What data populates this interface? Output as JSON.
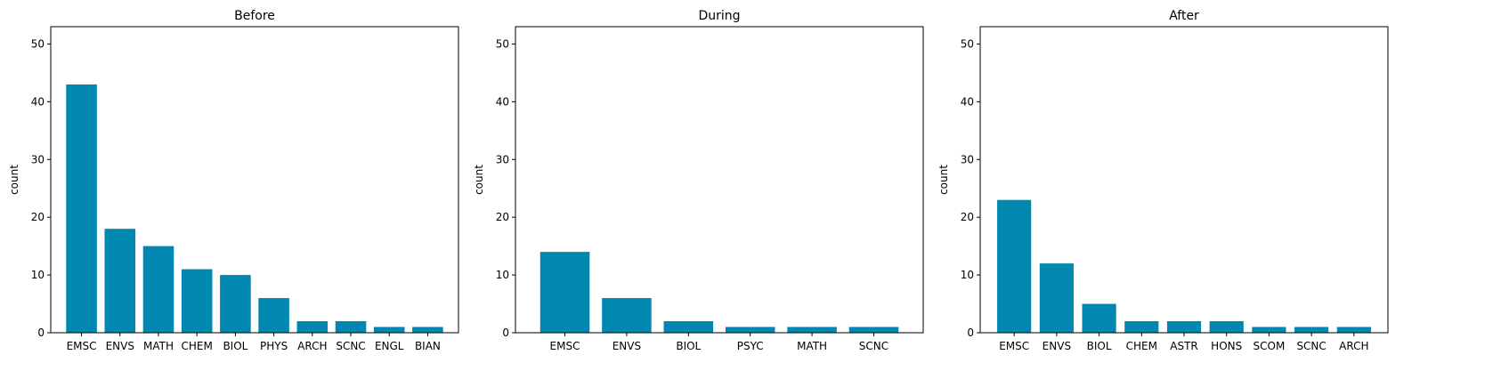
{
  "chart_data": [
    {
      "type": "bar",
      "title": "Before",
      "xlabel": "",
      "ylabel": "count",
      "ylim": [
        0,
        53
      ],
      "yticks": [
        0,
        10,
        20,
        30,
        40,
        50
      ],
      "grid": false,
      "bar_color": "#0088b0",
      "categories": [
        "EMSC",
        "ENVS",
        "MATH",
        "CHEM",
        "BIOL",
        "PHYS",
        "ARCH",
        "SCNC",
        "ENGL",
        "BIAN"
      ],
      "values": [
        43,
        18,
        15,
        11,
        10,
        6,
        2,
        2,
        1,
        1
      ]
    },
    {
      "type": "bar",
      "title": "During",
      "xlabel": "",
      "ylabel": "count",
      "ylim": [
        0,
        53
      ],
      "yticks": [
        0,
        10,
        20,
        30,
        40,
        50
      ],
      "grid": false,
      "bar_color": "#0088b0",
      "categories": [
        "EMSC",
        "ENVS",
        "BIOL",
        "PSYC",
        "MATH",
        "SCNC"
      ],
      "values": [
        14,
        6,
        2,
        1,
        1,
        1
      ]
    },
    {
      "type": "bar",
      "title": "After",
      "xlabel": "",
      "ylabel": "count",
      "ylim": [
        0,
        53
      ],
      "yticks": [
        0,
        10,
        20,
        30,
        40,
        50
      ],
      "grid": false,
      "bar_color": "#0088b0",
      "categories": [
        "EMSC",
        "ENVS",
        "BIOL",
        "CHEM",
        "ASTR",
        "HONS",
        "SCOM",
        "SCNC",
        "ARCH"
      ],
      "values": [
        23,
        12,
        5,
        2,
        2,
        2,
        1,
        1,
        1
      ]
    }
  ]
}
